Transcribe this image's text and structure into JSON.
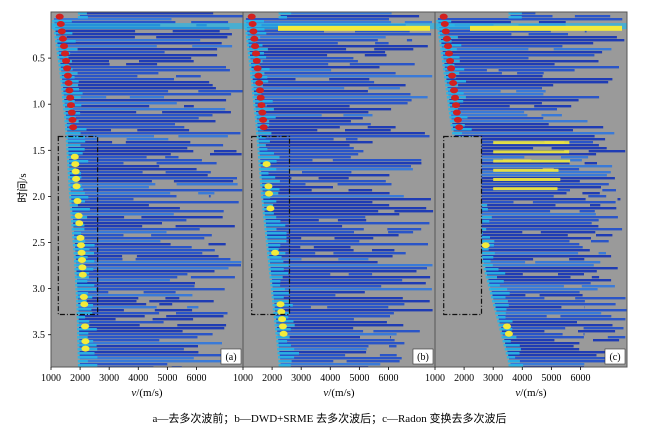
{
  "caption": "a—去多次波前；b—DWD+SRME 去多次波后；c—Radon 变换去多次波后",
  "colors": {
    "background_gray": "#9a9a9a",
    "low": "#1f3cb4",
    "mid": "#27b6e8",
    "high": "#f3ea3a",
    "peak": "#d3201f"
  },
  "chart_data": {
    "type": "heatmap",
    "description_units": "velocity semblance spectra",
    "xlabel_var": "v",
    "xlabel_unit": "/(m/s)",
    "ylabel": "时间/s",
    "xlim": [
      1000,
      7600
    ],
    "ylim": [
      0,
      3.85
    ],
    "x_ticks": [
      "1000",
      "2000",
      "3000",
      "4000",
      "5000",
      "6000"
    ],
    "y_ticks": [
      "0.5",
      "1.0",
      "1.5",
      "2.0",
      "2.5",
      "3.0",
      "3.5"
    ],
    "x_tick_values": [
      1000,
      2000,
      3000,
      4000,
      5000,
      6000
    ],
    "y_tick_values": [
      0.5,
      1.0,
      1.5,
      2.0,
      2.5,
      3.0,
      3.5
    ],
    "panels": [
      {
        "tag": "(a)",
        "highlight_box": {
          "v_range": [
            1250,
            2600
          ],
          "t_range": [
            1.35,
            3.28
          ]
        },
        "energy_trend": [
          [
            1300,
            0.05
          ],
          [
            1550,
            0.6
          ],
          [
            1750,
            1.2
          ],
          [
            1900,
            2.0
          ],
          [
            2050,
            2.6
          ],
          [
            2150,
            3.2
          ],
          [
            2200,
            3.8
          ]
        ]
      },
      {
        "tag": "(b)",
        "highlight_box": {
          "v_range": [
            1300,
            2600
          ],
          "t_range": [
            1.35,
            3.28
          ]
        },
        "energy_trend": [
          [
            1300,
            0.05
          ],
          [
            1500,
            0.6
          ],
          [
            1700,
            1.2
          ],
          [
            1900,
            2.0
          ],
          [
            2100,
            2.6
          ],
          [
            2300,
            3.2
          ],
          [
            2500,
            3.8
          ]
        ]
      },
      {
        "tag": "(c)",
        "highlight_box": {
          "v_range": [
            1300,
            2600
          ],
          "t_range": [
            1.35,
            3.28
          ]
        },
        "energy_trend": [
          [
            1300,
            0.05
          ],
          [
            1550,
            0.6
          ],
          [
            1800,
            1.2
          ],
          [
            2300,
            2.0
          ],
          [
            2800,
            2.6
          ],
          [
            3300,
            3.2
          ],
          [
            3800,
            3.8
          ]
        ]
      }
    ]
  }
}
